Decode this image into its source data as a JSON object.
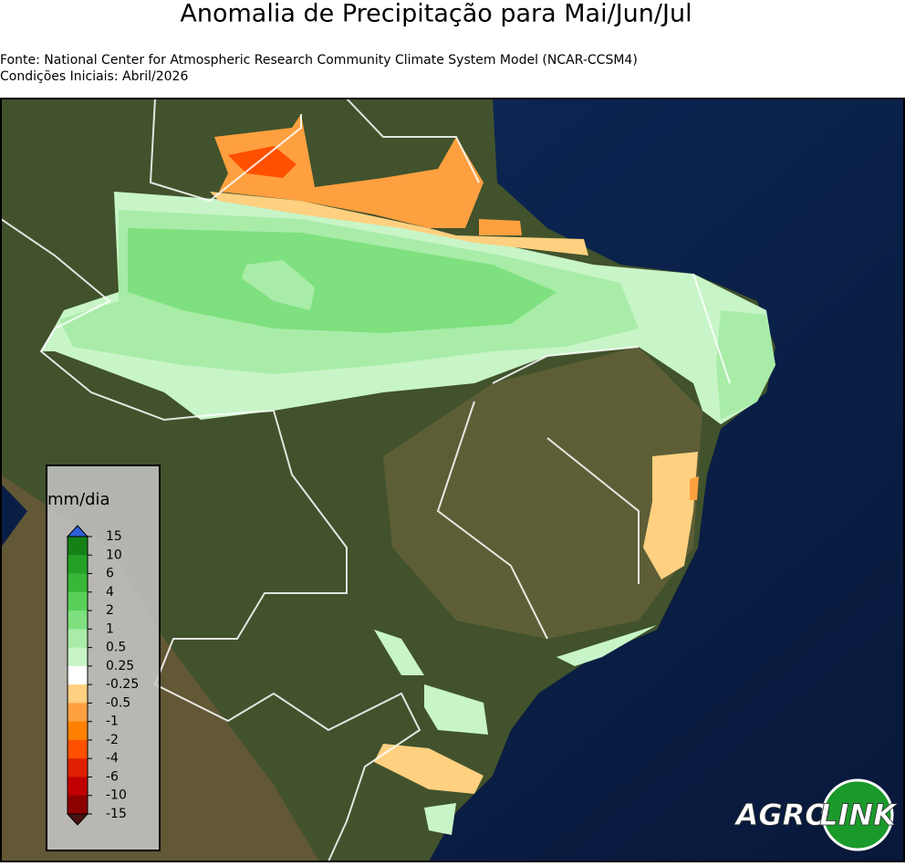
{
  "title": "Anomalia de Precipitação para Mai/Jun/Jul",
  "source": "Fonte: National Center for Atmospheric Research Community Climate System Model (NCAR-CCSM4)",
  "initial_conditions": "Condições Iniciais: Abril/2026",
  "legend": {
    "unit": "mm/dia",
    "ticks": [
      15,
      10,
      6,
      4,
      2,
      1,
      0.5,
      0.25,
      -0.25,
      -0.5,
      -1,
      -2,
      -4,
      -6,
      -10,
      -15
    ],
    "colors": [
      "#168016",
      "#24a024",
      "#38b838",
      "#58d058",
      "#7ee07e",
      "#a8eca8",
      "#c8f5c8",
      "#ffffff",
      "#ffd080",
      "#ffa040",
      "#ff8000",
      "#ff5000",
      "#e02000",
      "#c00000",
      "#8c0000"
    ],
    "extend_colors": [
      "#2f5fd8",
      "#4a1010"
    ]
  },
  "logo": {
    "left": "AGRO",
    "right": "LINK"
  }
}
